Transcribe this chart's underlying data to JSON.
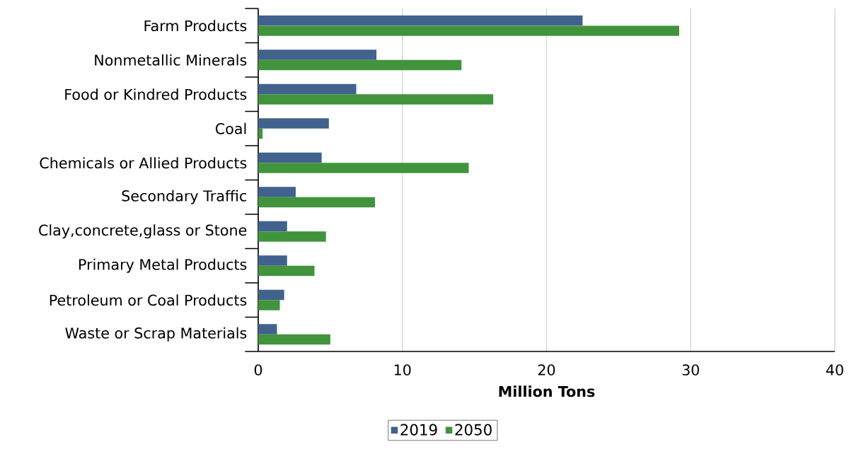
{
  "chart_data": {
    "type": "bar",
    "orientation": "horizontal",
    "xlabel": "Million Tons",
    "categories": [
      "Farm Products",
      "Nonmetallic Minerals",
      "Food or Kindred Products",
      "Coal",
      "Chemicals or Allied Products",
      "Secondary Traffic",
      "Clay,concrete,glass or Stone",
      "Primary Metal Products",
      "Petroleum or Coal Products",
      "Waste or Scrap Materials"
    ],
    "series": [
      {
        "name": "2019",
        "color": "#41628c",
        "values": [
          22.5,
          8.2,
          6.8,
          4.9,
          4.4,
          2.6,
          2.0,
          2.0,
          1.8,
          1.3
        ]
      },
      {
        "name": "2050",
        "color": "#41943c",
        "values": [
          29.2,
          14.1,
          16.3,
          0.3,
          14.6,
          8.1,
          4.7,
          3.9,
          1.5,
          5.0
        ]
      }
    ],
    "xlim": [
      0,
      40
    ],
    "xticks": [
      0,
      10,
      20,
      30,
      40
    ],
    "grid": "x",
    "legend": "bottom"
  }
}
